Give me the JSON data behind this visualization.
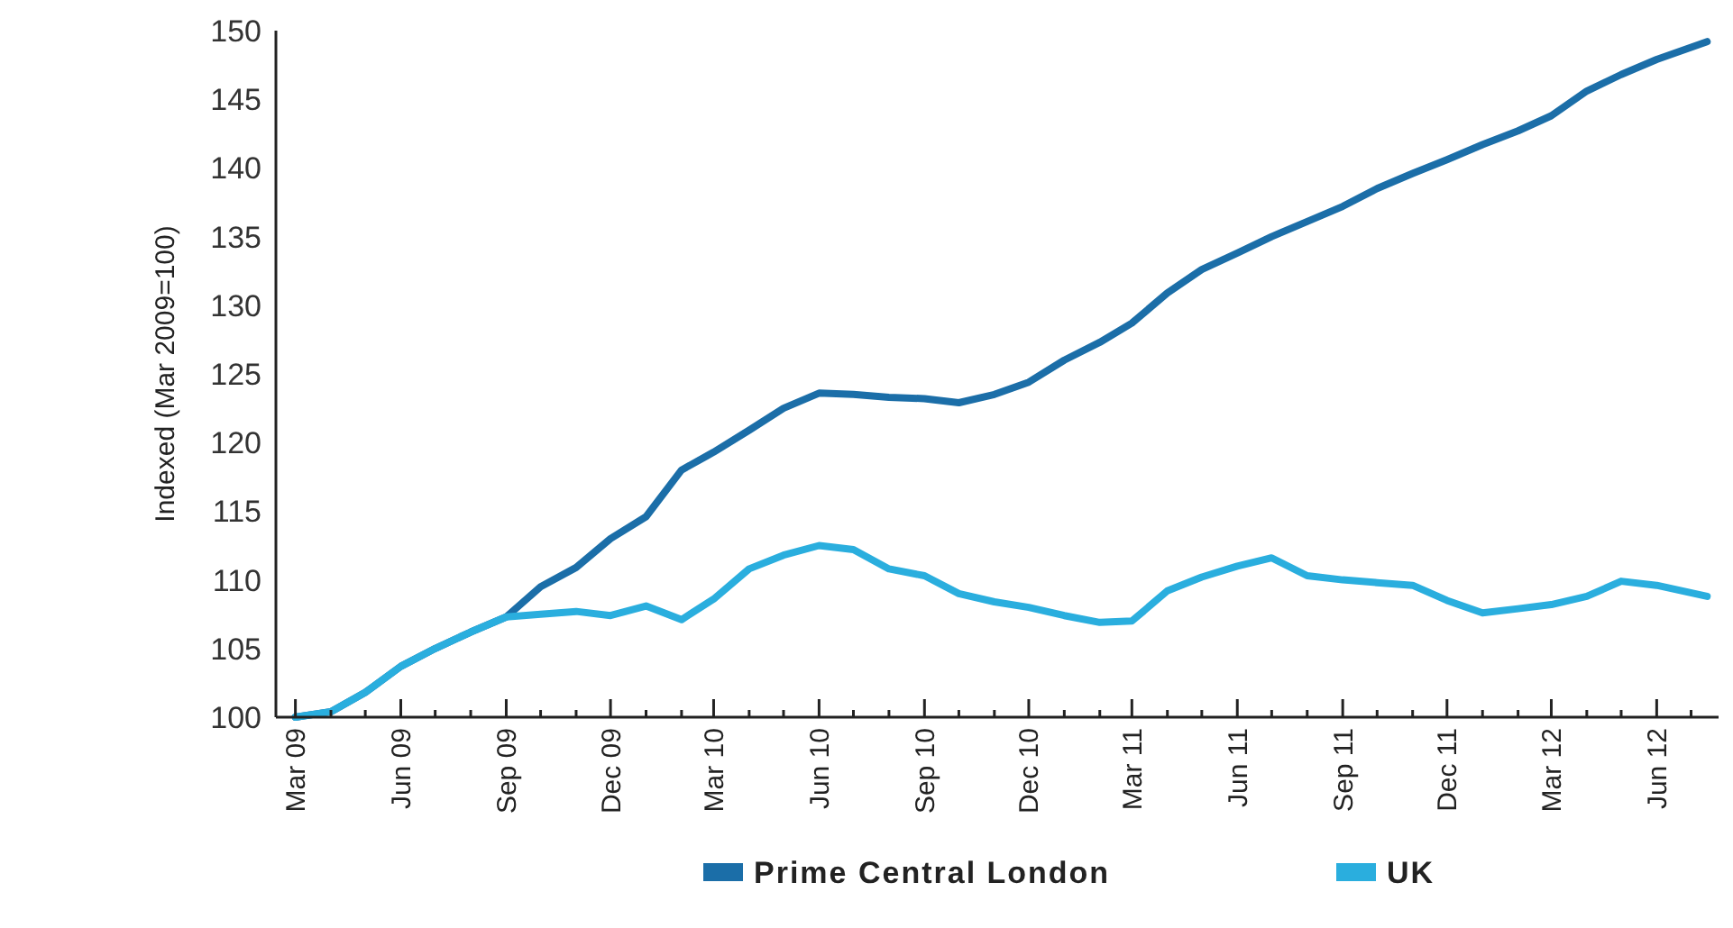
{
  "chart_data": {
    "type": "line",
    "ylabel": "Indexed (Mar 2009=100)",
    "x": [
      "2009-03",
      "2009-04",
      "2009-05",
      "2009-06",
      "2009-07",
      "2009-08",
      "2009-09",
      "2009-10",
      "2009-11",
      "2009-12",
      "2010-01",
      "2010-02",
      "2010-03",
      "2010-04",
      "2010-05",
      "2010-06",
      "2010-07",
      "2010-08",
      "2010-09",
      "2010-10",
      "2010-11",
      "2010-12",
      "2011-01",
      "2011-02",
      "2011-03",
      "2011-04",
      "2011-05",
      "2011-06",
      "2011-07",
      "2011-08",
      "2011-09",
      "2011-10",
      "2011-11",
      "2011-12",
      "2012-01",
      "2012-02",
      "2012-03",
      "2012-04",
      "2012-05",
      "2012-06",
      "2012-07-15"
    ],
    "series": [
      {
        "name": "Prime Central London",
        "color": "#1b6ea8",
        "values": [
          100.0,
          100.4,
          101.8,
          103.7,
          105.0,
          106.2,
          107.3,
          109.5,
          110.9,
          113.0,
          114.6,
          118.0,
          119.3,
          120.9,
          122.5,
          123.6,
          123.5,
          123.3,
          123.2,
          122.9,
          123.5,
          124.4,
          126.0,
          127.3,
          128.7,
          130.9,
          132.6,
          133.8,
          135.0,
          136.1,
          137.2,
          138.5,
          139.6,
          140.6,
          141.7,
          142.7,
          143.8,
          145.6,
          146.8,
          147.9,
          149.2
        ]
      },
      {
        "name": "UK",
        "color": "#2aaede",
        "values": [
          100.0,
          100.4,
          101.8,
          103.7,
          105.0,
          106.2,
          107.3,
          107.5,
          107.7,
          107.4,
          108.1,
          107.1,
          108.6,
          110.8,
          111.8,
          112.5,
          112.2,
          110.8,
          110.3,
          109.0,
          108.4,
          108.0,
          107.4,
          106.9,
          107.0,
          109.2,
          110.2,
          111.0,
          111.6,
          110.3,
          110.0,
          109.8,
          109.6,
          108.5,
          107.6,
          107.9,
          108.2,
          108.8,
          109.9,
          109.6,
          108.8
        ]
      }
    ],
    "xlim": [
      "2009-02-12",
      "2012-07-25"
    ],
    "xticks": [
      {
        "value": "2009-03",
        "label": "Mar 09"
      },
      {
        "value": "2009-04",
        "label": null
      },
      {
        "value": "2009-05",
        "label": null
      },
      {
        "value": "2009-06",
        "label": "Jun 09"
      },
      {
        "value": "2009-07",
        "label": null
      },
      {
        "value": "2009-08",
        "label": null
      },
      {
        "value": "2009-09",
        "label": "Sep 09"
      },
      {
        "value": "2009-10",
        "label": null
      },
      {
        "value": "2009-11",
        "label": null
      },
      {
        "value": "2009-12",
        "label": "Dec 09"
      },
      {
        "value": "2010-01",
        "label": null
      },
      {
        "value": "2010-02",
        "label": null
      },
      {
        "value": "2010-03",
        "label": "Mar 10"
      },
      {
        "value": "2010-04",
        "label": null
      },
      {
        "value": "2010-05",
        "label": null
      },
      {
        "value": "2010-06",
        "label": "Jun 10"
      },
      {
        "value": "2010-07",
        "label": null
      },
      {
        "value": "2010-08",
        "label": null
      },
      {
        "value": "2010-09",
        "label": "Sep 10"
      },
      {
        "value": "2010-10",
        "label": null
      },
      {
        "value": "2010-11",
        "label": null
      },
      {
        "value": "2010-12",
        "label": "Dec 10"
      },
      {
        "value": "2011-01",
        "label": null
      },
      {
        "value": "2011-02",
        "label": null
      },
      {
        "value": "2011-03",
        "label": "Mar 11"
      },
      {
        "value": "2011-04",
        "label": null
      },
      {
        "value": "2011-05",
        "label": null
      },
      {
        "value": "2011-06",
        "label": "Jun 11"
      },
      {
        "value": "2011-07",
        "label": null
      },
      {
        "value": "2011-08",
        "label": null
      },
      {
        "value": "2011-09",
        "label": "Sep 11"
      },
      {
        "value": "2011-10",
        "label": null
      },
      {
        "value": "2011-11",
        "label": null
      },
      {
        "value": "2011-12",
        "label": "Dec 11"
      },
      {
        "value": "2012-01",
        "label": null
      },
      {
        "value": "2012-02",
        "label": null
      },
      {
        "value": "2012-03",
        "label": "Mar 12"
      },
      {
        "value": "2012-04",
        "label": null
      },
      {
        "value": "2012-05",
        "label": null
      },
      {
        "value": "2012-06",
        "label": "Jun 12"
      },
      {
        "value": "2012-07",
        "label": null
      }
    ],
    "ylim": [
      100,
      150
    ],
    "yticks": [
      100,
      105,
      110,
      115,
      120,
      125,
      130,
      135,
      140,
      145,
      150
    ],
    "grid": false,
    "legend": "bottom",
    "marker": "none",
    "line_style": "solid"
  }
}
